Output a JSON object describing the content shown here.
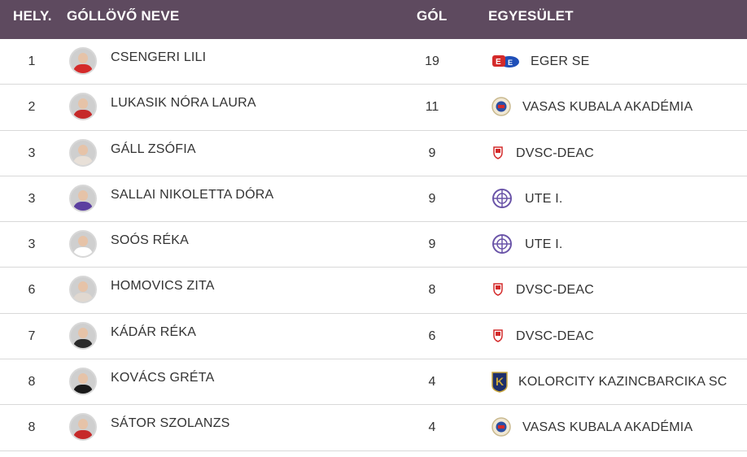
{
  "header": {
    "rank": "HELY.",
    "name": "GÓLLÖVŐ NEVE",
    "goals": "GÓL",
    "club": "EGYESÜLET"
  },
  "rows": [
    {
      "rank": "1",
      "name": "CSENGERI LILI",
      "goals": "19",
      "club": "EGER SE",
      "logo": "eger-se-logo",
      "shirt": "#d42a2a"
    },
    {
      "rank": "2",
      "name": "LUKASIK NÓRA LAURA",
      "goals": "11",
      "club": "VASAS KUBALA AKADÉMIA",
      "logo": "vasas-logo",
      "shirt": "#c62a2a"
    },
    {
      "rank": "3",
      "name": "GÁLL ZSÓFIA",
      "goals": "9",
      "club": "DVSC-DEAC",
      "logo": "dvsc-logo",
      "shirt": "#e8e0d8"
    },
    {
      "rank": "3",
      "name": "SALLAI NIKOLETTA DÓRA",
      "goals": "9",
      "club": "UTE I.",
      "logo": "ute-logo",
      "shirt": "#5b3fa0"
    },
    {
      "rank": "3",
      "name": "SOÓS RÉKA",
      "goals": "9",
      "club": "UTE I.",
      "logo": "ute-logo",
      "shirt": "#ffffff"
    },
    {
      "rank": "6",
      "name": "HOMOVICS ZITA",
      "goals": "8",
      "club": "DVSC-DEAC",
      "logo": "dvsc-logo",
      "shirt": "#e0d8d0"
    },
    {
      "rank": "7",
      "name": "KÁDÁR RÉKA",
      "goals": "6",
      "club": "DVSC-DEAC",
      "logo": "dvsc-logo",
      "shirt": "#2a2a2a"
    },
    {
      "rank": "8",
      "name": "KOVÁCS GRÉTA",
      "goals": "4",
      "club": "KOLORCITY KAZINCBARCIKA SC",
      "logo": "kazincbarcika-logo",
      "shirt": "#1a1a1a"
    },
    {
      "rank": "8",
      "name": "SÁTOR SZOLANZS",
      "goals": "4",
      "club": "VASAS KUBALA AKADÉMIA",
      "logo": "vasas-logo",
      "shirt": "#c62a2a"
    }
  ],
  "colors": {
    "header_bg": "#5e4a5f",
    "header_text": "#ffffff",
    "row_border": "#d9d9d9"
  }
}
